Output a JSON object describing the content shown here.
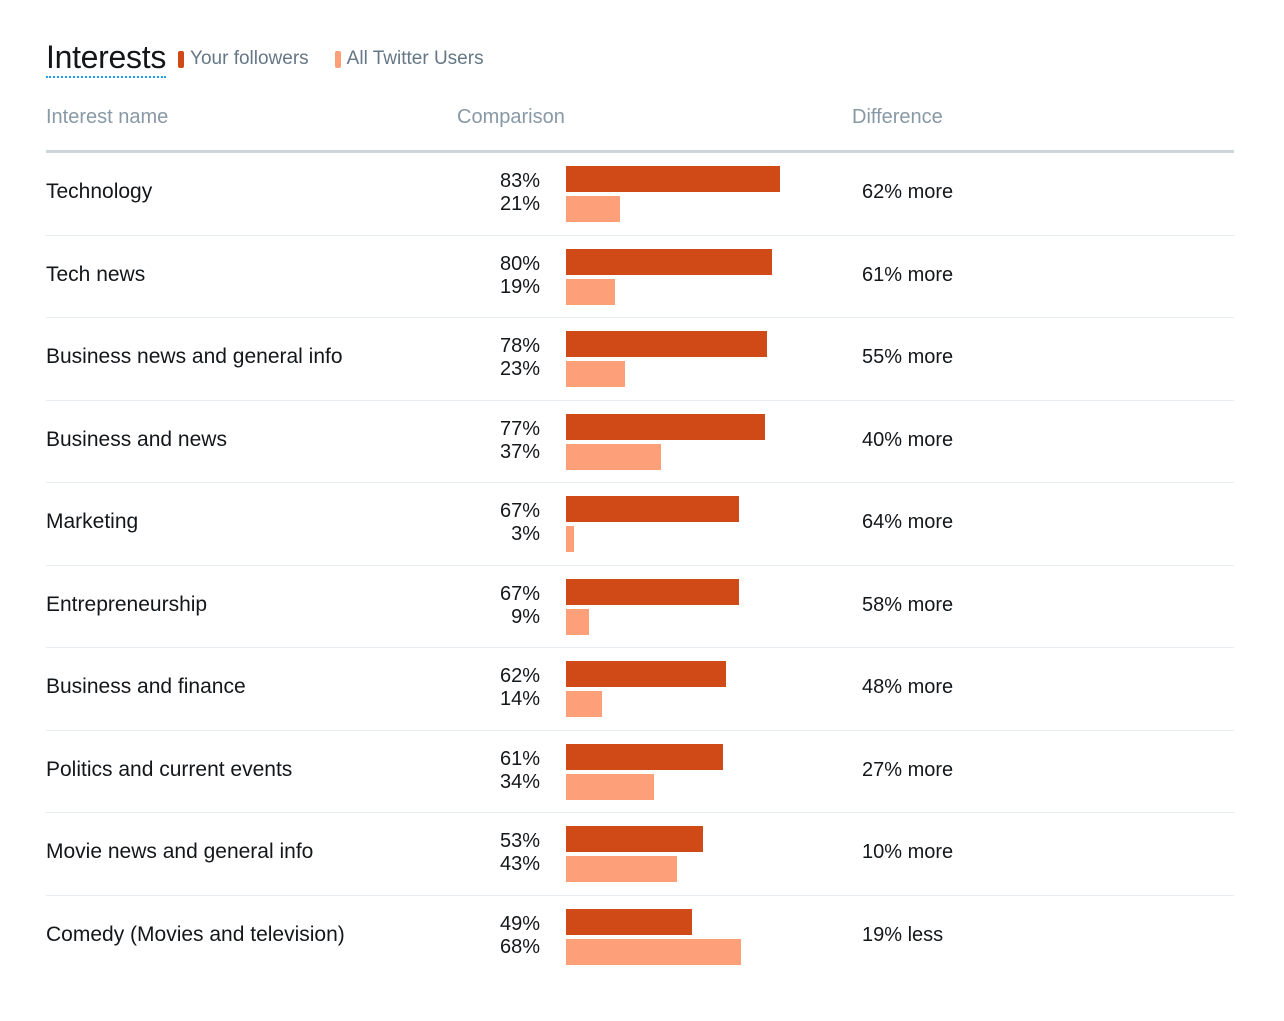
{
  "title": "Interests",
  "legend": {
    "followers_label": "Your followers",
    "all_label": "All Twitter Users"
  },
  "colors": {
    "followers": "#d04a17",
    "all_users": "#fd9f79",
    "title_underline": "#1da1f2"
  },
  "columns": {
    "name": "Interest name",
    "comparison": "Comparison",
    "difference": "Difference"
  },
  "rows": [
    {
      "name": "Technology",
      "followers_pct": "83%",
      "all_pct": "21%",
      "followers_value": 83,
      "all_value": 21,
      "difference": "62% more"
    },
    {
      "name": "Tech news",
      "followers_pct": "80%",
      "all_pct": "19%",
      "followers_value": 80,
      "all_value": 19,
      "difference": "61% more"
    },
    {
      "name": "Business news and general info",
      "followers_pct": "78%",
      "all_pct": "23%",
      "followers_value": 78,
      "all_value": 23,
      "difference": "55% more"
    },
    {
      "name": "Business and news",
      "followers_pct": "77%",
      "all_pct": "37%",
      "followers_value": 77,
      "all_value": 37,
      "difference": "40% more"
    },
    {
      "name": "Marketing",
      "followers_pct": "67%",
      "all_pct": "3%",
      "followers_value": 67,
      "all_value": 3,
      "difference": "64% more"
    },
    {
      "name": "Entrepreneurship",
      "followers_pct": "67%",
      "all_pct": "9%",
      "followers_value": 67,
      "all_value": 9,
      "difference": "58% more"
    },
    {
      "name": "Business and finance",
      "followers_pct": "62%",
      "all_pct": "14%",
      "followers_value": 62,
      "all_value": 14,
      "difference": "48% more"
    },
    {
      "name": "Politics and current events",
      "followers_pct": "61%",
      "all_pct": "34%",
      "followers_value": 61,
      "all_value": 34,
      "difference": "27% more"
    },
    {
      "name": "Movie news and general info",
      "followers_pct": "53%",
      "all_pct": "43%",
      "followers_value": 53,
      "all_value": 43,
      "difference": "10% more"
    },
    {
      "name": "Comedy (Movies and television)",
      "followers_pct": "49%",
      "all_pct": "68%",
      "followers_value": 49,
      "all_value": 68,
      "difference": "19% less"
    }
  ]
}
